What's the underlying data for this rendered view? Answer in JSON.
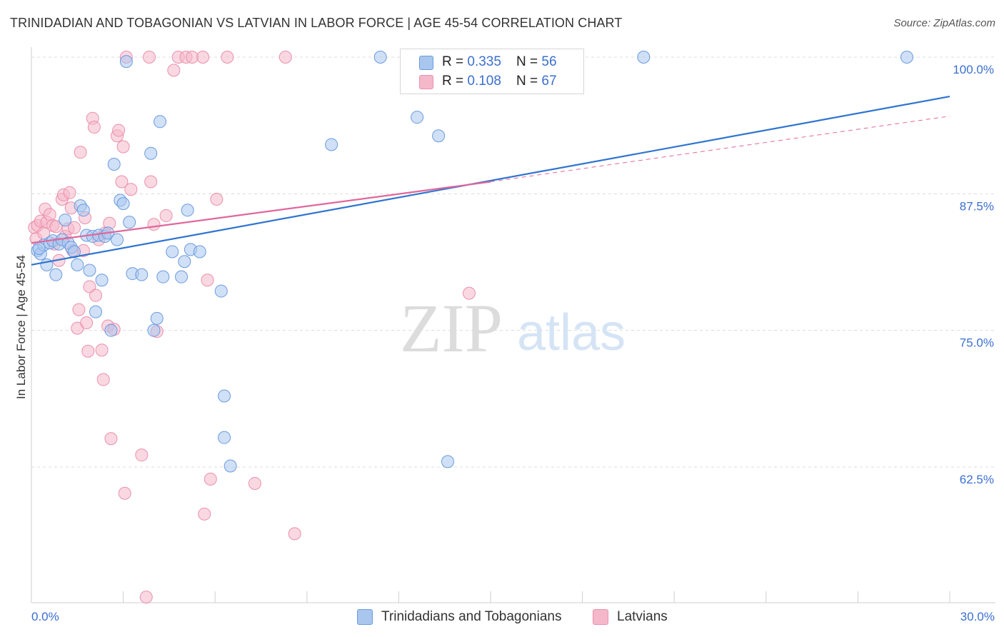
{
  "title": "TRINIDADIAN AND TOBAGONIAN VS LATVIAN IN LABOR FORCE | AGE 45-54 CORRELATION CHART",
  "source": "Source: ZipAtlas.com",
  "watermark": {
    "zip": "ZIP",
    "atlas": "atlas"
  },
  "legend": {
    "rows": [
      {
        "r_label": "R = ",
        "r_value": "0.335",
        "n_label": "N = ",
        "n_value": "56"
      },
      {
        "r_label": "R = ",
        "r_value": "0.108",
        "n_label": "N = ",
        "n_value": "67"
      }
    ]
  },
  "colors": {
    "blue_fill": "#a9c6ee",
    "blue_stroke": "#6a9be0",
    "blue_line": "#2f74d0",
    "pink_fill": "#f5b8cb",
    "pink_stroke": "#ea8fae",
    "pink_line": "#e0679a",
    "axis_text": "#3b6fd0",
    "grid": "#dcdcdc"
  },
  "chart_data": {
    "type": "scatter",
    "title": "TRINIDADIAN AND TOBAGONIAN VS LATVIAN IN LABOR FORCE | AGE 45-54 CORRELATION CHART",
    "xlabel": "",
    "ylabel": "In Labor Force | Age 45-54",
    "xlim": [
      0,
      30
    ],
    "ylim": [
      50,
      101
    ],
    "x_tick_labels": [
      "0.0%",
      "30.0%"
    ],
    "y_ticks": [
      62.5,
      75.0,
      87.5,
      100.0
    ],
    "y_tick_labels": [
      "62.5%",
      "75.0%",
      "87.5%",
      "100.0%"
    ],
    "grid": true,
    "series": [
      {
        "name": "Trinidadians and Tobagonians",
        "color": "#a9c6ee",
        "r": 0.335,
        "n": 56,
        "trend": {
          "x": [
            0,
            30
          ],
          "y": [
            81.0,
            96.4
          ]
        },
        "points": [
          [
            0.2,
            82.3
          ],
          [
            0.3,
            82.0
          ],
          [
            0.4,
            82.8
          ],
          [
            0.5,
            81.0
          ],
          [
            0.6,
            83.0
          ],
          [
            0.7,
            83.2
          ],
          [
            0.8,
            80.1
          ],
          [
            0.9,
            82.9
          ],
          [
            1.0,
            83.3
          ],
          [
            1.1,
            85.1
          ],
          [
            1.2,
            83.0
          ],
          [
            1.3,
            82.6
          ],
          [
            1.4,
            82.2
          ],
          [
            1.5,
            81.0
          ],
          [
            1.6,
            86.4
          ],
          [
            1.7,
            86.0
          ],
          [
            1.8,
            83.7
          ],
          [
            1.9,
            80.5
          ],
          [
            2.0,
            83.6
          ],
          [
            2.1,
            76.7
          ],
          [
            2.2,
            83.7
          ],
          [
            2.3,
            79.6
          ],
          [
            2.4,
            83.6
          ],
          [
            2.5,
            83.9
          ],
          [
            2.6,
            75.0
          ],
          [
            2.7,
            90.2
          ],
          [
            2.8,
            83.3
          ],
          [
            2.9,
            86.9
          ],
          [
            3.0,
            86.6
          ],
          [
            3.1,
            99.6
          ],
          [
            3.2,
            84.9
          ],
          [
            3.3,
            80.2
          ],
          [
            3.6,
            80.1
          ],
          [
            3.9,
            91.2
          ],
          [
            4.0,
            75.0
          ],
          [
            4.1,
            76.1
          ],
          [
            4.2,
            94.1
          ],
          [
            4.3,
            79.9
          ],
          [
            4.6,
            82.2
          ],
          [
            4.9,
            79.9
          ],
          [
            5.0,
            81.3
          ],
          [
            5.1,
            86.0
          ],
          [
            5.2,
            82.4
          ],
          [
            5.5,
            82.2
          ],
          [
            6.2,
            78.6
          ],
          [
            6.3,
            69.0
          ],
          [
            6.3,
            65.2
          ],
          [
            6.5,
            62.6
          ],
          [
            9.8,
            92.0
          ],
          [
            11.4,
            100.0
          ],
          [
            12.6,
            94.5
          ],
          [
            13.3,
            92.8
          ],
          [
            13.6,
            63.0
          ],
          [
            20.0,
            100.0
          ],
          [
            28.6,
            100.0
          ],
          [
            0.25,
            82.5
          ]
        ]
      },
      {
        "name": "Latvians",
        "color": "#f5b8cb",
        "r": 0.108,
        "n": 67,
        "trend": {
          "x": [
            0,
            15
          ],
          "y": [
            83.0,
            88.6
          ]
        },
        "trend_dashed": {
          "x": [
            15,
            30
          ],
          "y": [
            88.6,
            94.6
          ]
        },
        "points": [
          [
            0.1,
            84.4
          ],
          [
            0.15,
            83.4
          ],
          [
            0.2,
            84.6
          ],
          [
            0.3,
            85.0
          ],
          [
            0.4,
            83.9
          ],
          [
            0.45,
            86.1
          ],
          [
            0.5,
            84.9
          ],
          [
            0.6,
            85.6
          ],
          [
            0.7,
            84.6
          ],
          [
            0.75,
            82.9
          ],
          [
            0.8,
            84.5
          ],
          [
            0.9,
            81.4
          ],
          [
            1.0,
            87.0
          ],
          [
            1.05,
            87.4
          ],
          [
            1.1,
            83.6
          ],
          [
            1.2,
            84.3
          ],
          [
            1.25,
            87.6
          ],
          [
            1.3,
            86.2
          ],
          [
            1.35,
            82.3
          ],
          [
            1.4,
            84.4
          ],
          [
            1.5,
            75.2
          ],
          [
            1.55,
            76.9
          ],
          [
            1.6,
            91.3
          ],
          [
            1.7,
            82.3
          ],
          [
            1.75,
            85.3
          ],
          [
            1.8,
            75.7
          ],
          [
            1.85,
            73.1
          ],
          [
            1.9,
            79.0
          ],
          [
            2.0,
            94.4
          ],
          [
            2.05,
            93.6
          ],
          [
            2.1,
            78.2
          ],
          [
            2.2,
            83.3
          ],
          [
            2.3,
            73.2
          ],
          [
            2.35,
            70.5
          ],
          [
            2.4,
            83.9
          ],
          [
            2.5,
            75.4
          ],
          [
            2.55,
            84.8
          ],
          [
            2.6,
            65.1
          ],
          [
            2.7,
            75.1
          ],
          [
            2.8,
            92.8
          ],
          [
            2.85,
            93.3
          ],
          [
            2.95,
            88.6
          ],
          [
            3.0,
            91.8
          ],
          [
            3.05,
            60.1
          ],
          [
            3.1,
            100.0
          ],
          [
            3.25,
            87.9
          ],
          [
            3.6,
            63.6
          ],
          [
            3.75,
            50.6
          ],
          [
            3.85,
            100.0
          ],
          [
            3.9,
            88.6
          ],
          [
            4.0,
            84.7
          ],
          [
            4.1,
            74.9
          ],
          [
            4.4,
            85.5
          ],
          [
            4.65,
            98.8
          ],
          [
            4.8,
            100.0
          ],
          [
            5.05,
            100.0
          ],
          [
            5.25,
            100.0
          ],
          [
            5.6,
            100.0
          ],
          [
            5.65,
            58.2
          ],
          [
            5.75,
            79.6
          ],
          [
            5.85,
            61.4
          ],
          [
            6.05,
            87.0
          ],
          [
            6.4,
            100.0
          ],
          [
            7.3,
            61.0
          ],
          [
            8.3,
            100.0
          ],
          [
            8.6,
            56.4
          ],
          [
            14.3,
            78.4
          ]
        ]
      }
    ]
  },
  "bottom_legend": [
    {
      "label": "Trinidadians and Tobagonians"
    },
    {
      "label": "Latvians"
    }
  ]
}
